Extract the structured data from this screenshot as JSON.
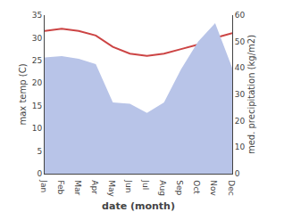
{
  "chart_data": {
    "type": "line",
    "x_label": "date (month)",
    "y_label": "max temp (C)",
    "y2_label": "med. precipitation (kg/m2)",
    "categories": [
      "Jan",
      "Feb",
      "Mar",
      "Apr",
      "May",
      "Jun",
      "Jul",
      "Aug",
      "Sep",
      "Oct",
      "Nov",
      "Dec"
    ],
    "series": [
      {
        "type": "area",
        "axis": "y2",
        "color": "#b8c4e8",
        "values": [
          44.0,
          44.5,
          43.5,
          41.5,
          27.0,
          26.5,
          23.0,
          27.0,
          39.5,
          50.0,
          57.0,
          40.0
        ]
      },
      {
        "type": "line",
        "axis": "y",
        "color": "#cc4444",
        "values": [
          31.5,
          32.0,
          31.5,
          30.5,
          28.0,
          26.5,
          26.0,
          26.5,
          27.5,
          28.5,
          30.0,
          31.0
        ]
      }
    ],
    "ylim": [
      0,
      35
    ],
    "yticks": [
      0,
      5,
      10,
      15,
      20,
      25,
      30,
      35
    ],
    "y2lim": [
      0,
      60
    ],
    "y2ticks": [
      0,
      10,
      20,
      30,
      40,
      50,
      60
    ],
    "grid": false
  }
}
